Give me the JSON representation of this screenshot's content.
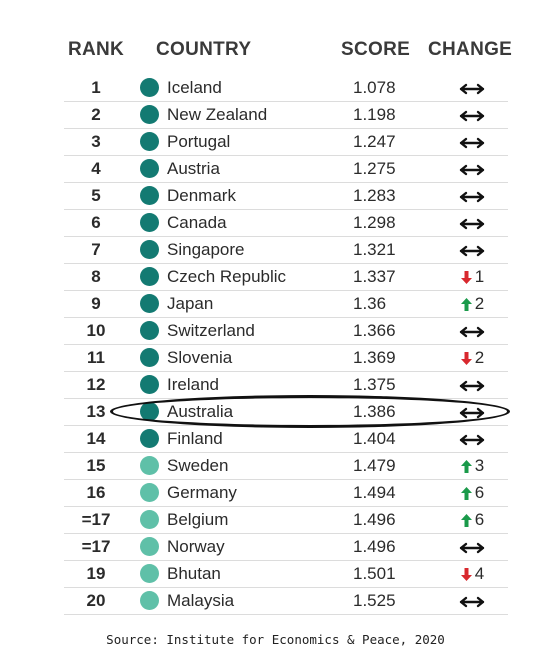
{
  "headers": {
    "rank": "RANK",
    "country": "COUNTRY",
    "score": "SCORE",
    "change": "CHANGE"
  },
  "colors": {
    "dark_teal": "#137a72",
    "light_teal": "#5fc0a8",
    "up": "#1a9a4a",
    "down": "#d8282e",
    "neutral": "#111111"
  },
  "highlighted_country": "Australia",
  "chart_data": {
    "type": "table",
    "columns": [
      "RANK",
      "COUNTRY",
      "SCORE",
      "CHANGE"
    ],
    "rows": [
      {
        "rank": "1",
        "country": "Iceland",
        "score": "1.078",
        "change_dir": "none",
        "change": "",
        "tier": "dark"
      },
      {
        "rank": "2",
        "country": "New Zealand",
        "score": "1.198",
        "change_dir": "none",
        "change": "",
        "tier": "dark"
      },
      {
        "rank": "3",
        "country": "Portugal",
        "score": "1.247",
        "change_dir": "none",
        "change": "",
        "tier": "dark"
      },
      {
        "rank": "4",
        "country": "Austria",
        "score": "1.275",
        "change_dir": "none",
        "change": "",
        "tier": "dark"
      },
      {
        "rank": "5",
        "country": "Denmark",
        "score": "1.283",
        "change_dir": "none",
        "change": "",
        "tier": "dark"
      },
      {
        "rank": "6",
        "country": "Canada",
        "score": "1.298",
        "change_dir": "none",
        "change": "",
        "tier": "dark"
      },
      {
        "rank": "7",
        "country": "Singapore",
        "score": "1.321",
        "change_dir": "none",
        "change": "",
        "tier": "dark"
      },
      {
        "rank": "8",
        "country": "Czech Republic",
        "score": "1.337",
        "change_dir": "down",
        "change": "1",
        "tier": "dark"
      },
      {
        "rank": "9",
        "country": "Japan",
        "score": "1.36",
        "change_dir": "up",
        "change": "2",
        "tier": "dark"
      },
      {
        "rank": "10",
        "country": "Switzerland",
        "score": "1.366",
        "change_dir": "none",
        "change": "",
        "tier": "dark"
      },
      {
        "rank": "11",
        "country": "Slovenia",
        "score": "1.369",
        "change_dir": "down",
        "change": "2",
        "tier": "dark"
      },
      {
        "rank": "12",
        "country": "Ireland",
        "score": "1.375",
        "change_dir": "none",
        "change": "",
        "tier": "dark"
      },
      {
        "rank": "13",
        "country": "Australia",
        "score": "1.386",
        "change_dir": "none",
        "change": "",
        "tier": "dark"
      },
      {
        "rank": "14",
        "country": "Finland",
        "score": "1.404",
        "change_dir": "none",
        "change": "",
        "tier": "dark"
      },
      {
        "rank": "15",
        "country": "Sweden",
        "score": "1.479",
        "change_dir": "up",
        "change": "3",
        "tier": "light"
      },
      {
        "rank": "16",
        "country": "Germany",
        "score": "1.494",
        "change_dir": "up",
        "change": "6",
        "tier": "light"
      },
      {
        "rank": "=17",
        "country": "Belgium",
        "score": "1.496",
        "change_dir": "up",
        "change": "6",
        "tier": "light"
      },
      {
        "rank": "=17",
        "country": "Norway",
        "score": "1.496",
        "change_dir": "none",
        "change": "",
        "tier": "light"
      },
      {
        "rank": "19",
        "country": "Bhutan",
        "score": "1.501",
        "change_dir": "down",
        "change": "4",
        "tier": "light"
      },
      {
        "rank": "20",
        "country": "Malaysia",
        "score": "1.525",
        "change_dir": "none",
        "change": "",
        "tier": "light"
      }
    ]
  },
  "source": "Source: Institute for Economics & Peace, 2020"
}
